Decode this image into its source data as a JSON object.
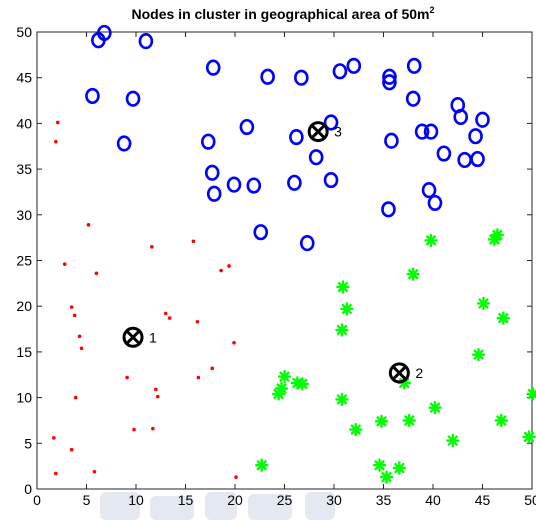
{
  "chart_data": {
    "type": "scatter",
    "title": "Nodes in cluster in geographical area of 50m",
    "title_superscript": "2",
    "xlim": [
      0,
      50
    ],
    "ylim": [
      0,
      50
    ],
    "xticks": [
      "0",
      "5",
      "10",
      "15",
      "20",
      "25",
      "30",
      "35",
      "40",
      "45",
      "50"
    ],
    "yticks": [
      "0",
      "5",
      "10",
      "15",
      "20",
      "25",
      "30",
      "35",
      "40",
      "45",
      "50"
    ],
    "grid": false,
    "series": [
      {
        "marker": "dot",
        "color": "#ff0000",
        "points": [
          [
            2.1,
            40.1
          ],
          [
            1.9,
            38.0
          ],
          [
            5.2,
            28.9
          ],
          [
            11.6,
            26.5
          ],
          [
            15.8,
            27.1
          ],
          [
            2.8,
            24.6
          ],
          [
            6.0,
            23.6
          ],
          [
            18.6,
            23.9
          ],
          [
            19.4,
            24.4
          ],
          [
            3.5,
            19.9
          ],
          [
            3.8,
            19.0
          ],
          [
            13.0,
            19.2
          ],
          [
            13.4,
            18.7
          ],
          [
            16.2,
            18.3
          ],
          [
            4.3,
            16.7
          ],
          [
            4.5,
            15.4
          ],
          [
            19.9,
            16.0
          ],
          [
            17.7,
            13.2
          ],
          [
            16.3,
            12.2
          ],
          [
            9.1,
            12.2
          ],
          [
            12.0,
            10.9
          ],
          [
            12.2,
            10.1
          ],
          [
            3.9,
            10.0
          ],
          [
            11.7,
            6.6
          ],
          [
            9.8,
            6.5
          ],
          [
            1.7,
            5.6
          ],
          [
            3.5,
            4.3
          ],
          [
            5.8,
            1.9
          ],
          [
            1.9,
            1.7
          ],
          [
            20.1,
            1.3
          ]
        ]
      },
      {
        "marker": "circle",
        "color": "#0000ff",
        "points": [
          [
            6.8,
            49.9
          ],
          [
            6.2,
            49.1
          ],
          [
            11.0,
            49.0
          ],
          [
            17.8,
            46.1
          ],
          [
            23.3,
            45.1
          ],
          [
            26.7,
            45.0
          ],
          [
            30.6,
            45.7
          ],
          [
            32.0,
            46.3
          ],
          [
            35.6,
            45.1
          ],
          [
            35.6,
            44.5
          ],
          [
            38.1,
            46.3
          ],
          [
            5.6,
            43.0
          ],
          [
            9.7,
            42.7
          ],
          [
            38.0,
            42.7
          ],
          [
            42.5,
            42.0
          ],
          [
            42.8,
            40.7
          ],
          [
            45.0,
            40.4
          ],
          [
            21.2,
            39.6
          ],
          [
            29.7,
            40.1
          ],
          [
            26.2,
            38.5
          ],
          [
            35.8,
            38.1
          ],
          [
            38.9,
            39.1
          ],
          [
            39.8,
            39.1
          ],
          [
            44.3,
            38.6
          ],
          [
            8.8,
            37.8
          ],
          [
            17.3,
            38.0
          ],
          [
            28.2,
            36.3
          ],
          [
            41.1,
            36.7
          ],
          [
            43.2,
            36.0
          ],
          [
            44.5,
            36.1
          ],
          [
            17.7,
            34.6
          ],
          [
            29.7,
            33.8
          ],
          [
            26.0,
            33.5
          ],
          [
            19.9,
            33.3
          ],
          [
            21.9,
            33.2
          ],
          [
            17.9,
            32.3
          ],
          [
            39.6,
            32.7
          ],
          [
            40.2,
            31.3
          ],
          [
            35.5,
            30.6
          ],
          [
            22.6,
            28.1
          ],
          [
            27.3,
            26.9
          ]
        ]
      },
      {
        "marker": "asterisk",
        "color": "#00ff00",
        "points": [
          [
            39.8,
            27.2
          ],
          [
            46.2,
            27.3
          ],
          [
            46.5,
            27.8
          ],
          [
            38.0,
            23.5
          ],
          [
            30.9,
            22.1
          ],
          [
            31.3,
            19.7
          ],
          [
            45.1,
            20.3
          ],
          [
            47.1,
            18.7
          ],
          [
            30.8,
            17.4
          ],
          [
            44.6,
            14.7
          ],
          [
            37.1,
            11.6
          ],
          [
            26.3,
            11.6
          ],
          [
            26.8,
            11.5
          ],
          [
            25.0,
            12.3
          ],
          [
            24.7,
            11.0
          ],
          [
            24.4,
            10.4
          ],
          [
            30.8,
            9.8
          ],
          [
            50.1,
            10.4
          ],
          [
            40.2,
            8.9
          ],
          [
            37.6,
            7.5
          ],
          [
            46.9,
            7.5
          ],
          [
            34.8,
            7.4
          ],
          [
            32.2,
            6.5
          ],
          [
            42.0,
            5.3
          ],
          [
            49.7,
            5.7
          ],
          [
            22.7,
            2.6
          ],
          [
            34.6,
            2.6
          ],
          [
            36.6,
            2.3
          ],
          [
            35.3,
            1.3
          ]
        ]
      },
      {
        "marker": "cross-circle",
        "color": "#000000",
        "points": [
          [
            9.7,
            16.6
          ],
          [
            36.6,
            12.7
          ],
          [
            28.4,
            39.1
          ]
        ],
        "labels": [
          "1",
          "2",
          "3"
        ]
      }
    ]
  }
}
